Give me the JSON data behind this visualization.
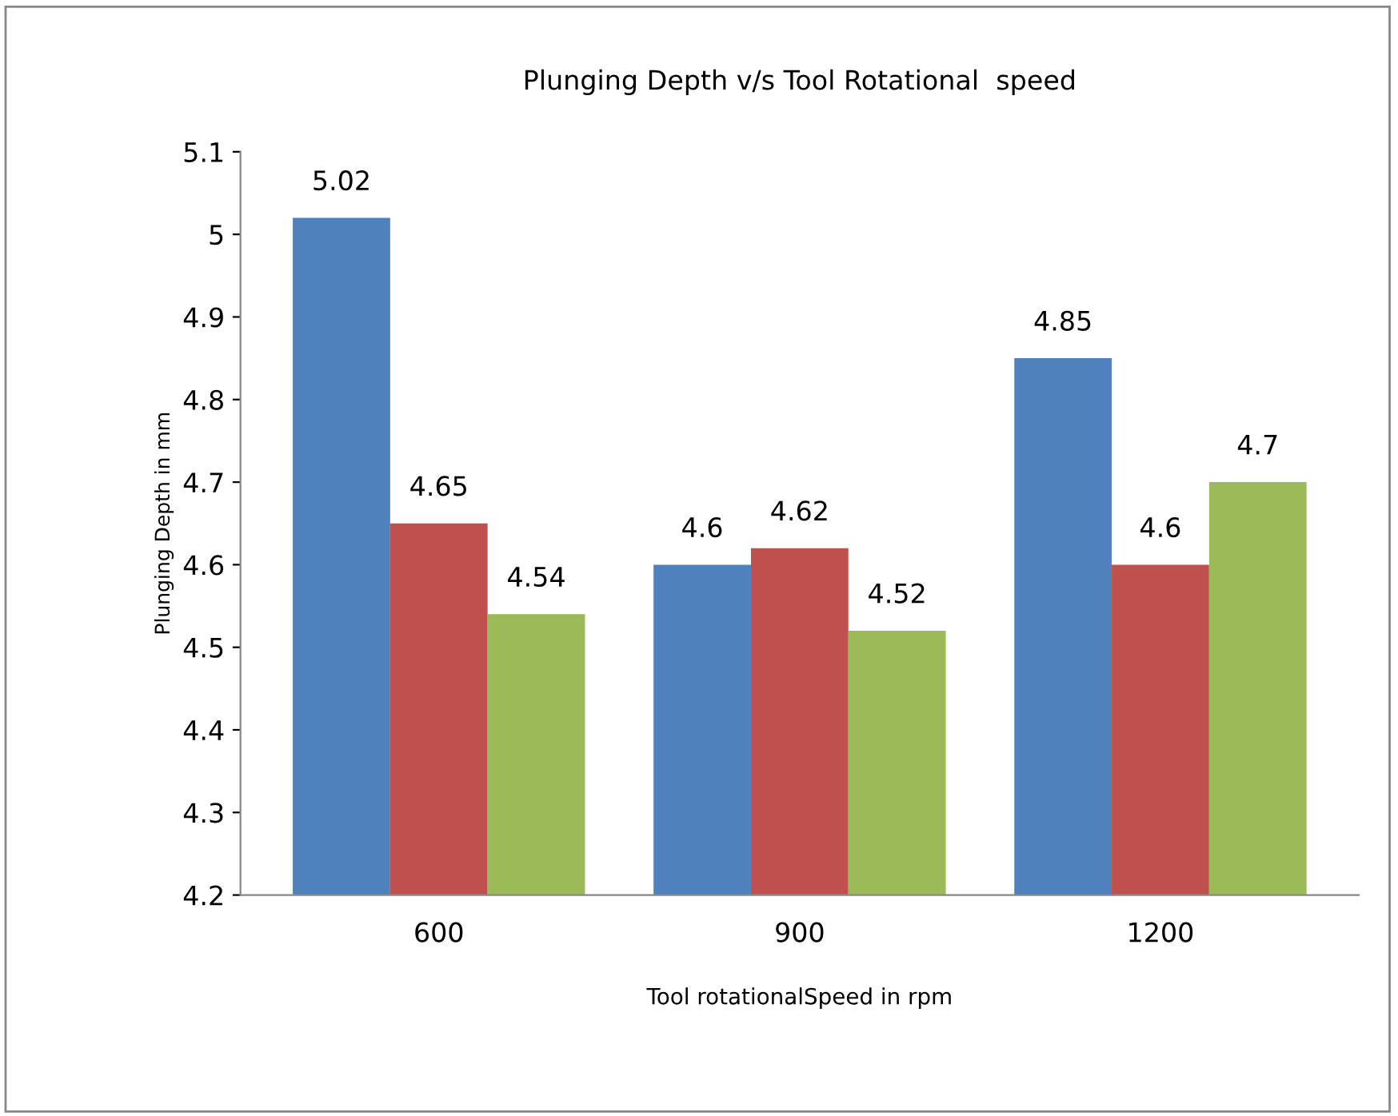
{
  "chart_data": {
    "type": "bar",
    "title": "Plunging Depth v/s Tool Rotational  speed",
    "xlabel": "Tool rotationalSpeed in rpm",
    "ylabel": "Plunging Depth in mm",
    "categories": [
      "600",
      "900",
      "1200"
    ],
    "series": [
      {
        "color": "#4f81bd",
        "values": [
          5.02,
          4.6,
          4.85
        ]
      },
      {
        "color": "#c0504d",
        "values": [
          4.65,
          4.62,
          4.6
        ]
      },
      {
        "color": "#9bbb59",
        "values": [
          4.54,
          4.52,
          4.7
        ]
      }
    ],
    "ylim": [
      4.2,
      5.1
    ],
    "yticks": [
      4.2,
      4.3,
      4.4,
      4.5,
      4.6,
      4.7,
      4.8,
      4.9,
      5,
      5.1
    ],
    "grid": false,
    "legend": false,
    "data_labels": true
  }
}
